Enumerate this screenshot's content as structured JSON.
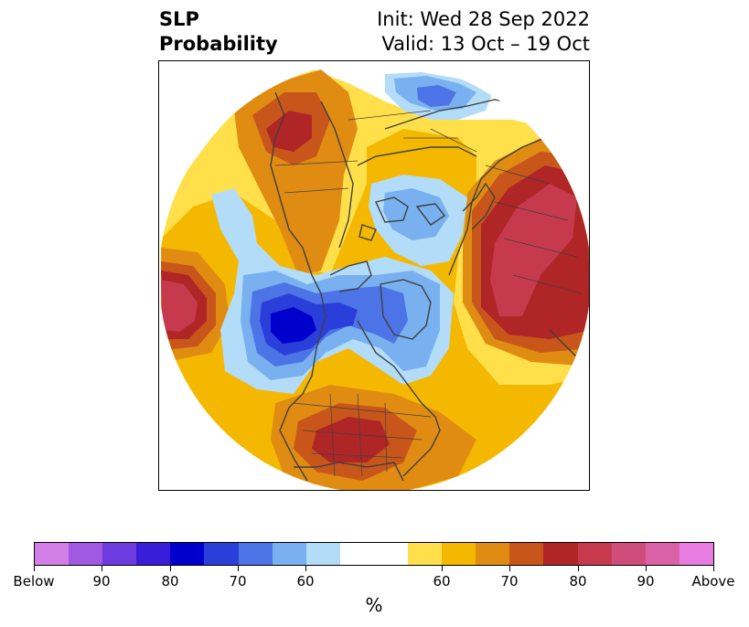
{
  "title": {
    "left_line1": "SLP",
    "left_line2": "Probability",
    "right_line1": "Init: Wed 28 Sep 2022",
    "right_line2": "Valid: 13 Oct – 19 Oct"
  },
  "colorbar": {
    "colors": [
      "#d47ee8",
      "#a059e0",
      "#6e3be0",
      "#3a1dd8",
      "#0000cc",
      "#2a3fd9",
      "#4d74e6",
      "#78b0f0",
      "#b2dcf7",
      "#ffffff",
      "#ffffff",
      "#ffe04a",
      "#f5b800",
      "#e08c12",
      "#c8561a",
      "#b02525",
      "#c73a4e",
      "#cf4d7a",
      "#dc62a8",
      "#e87ce0"
    ],
    "tick_labels": [
      "Below",
      "90",
      "80",
      "70",
      "60",
      "60",
      "70",
      "80",
      "90",
      "Above"
    ],
    "unit": "%"
  },
  "map_colors": {
    "yellow": "#ffe04a",
    "gold": "#f5b800",
    "orange": "#e08c12",
    "dark_orange": "#c8561a",
    "red": "#b02525",
    "crimson": "#c73a4e",
    "light_blue": "#b2dcf7",
    "sky_blue": "#78b0f0",
    "blue": "#4d74e6",
    "royal_blue": "#2a3fd9",
    "deep_blue": "#0000cc",
    "coast": "#404040"
  }
}
